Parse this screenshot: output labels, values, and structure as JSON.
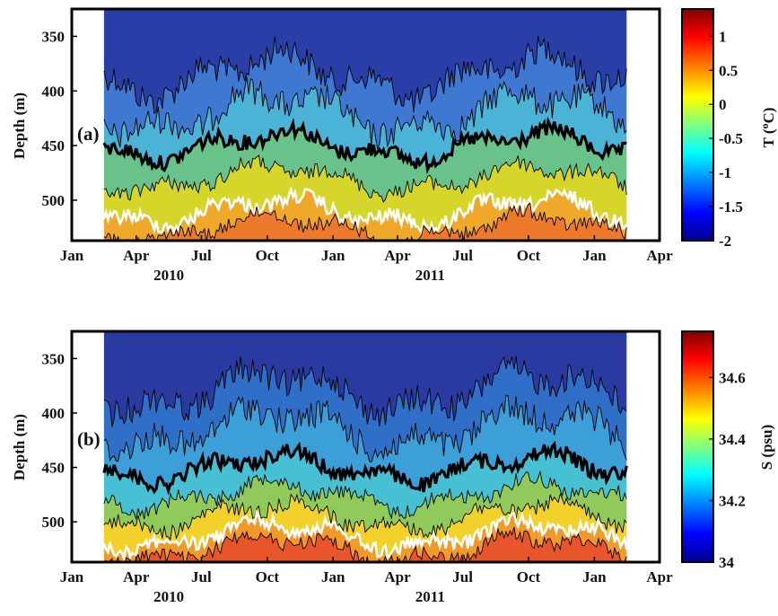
{
  "chart_data": [
    {
      "type": "heatmap",
      "panel_label": "(a)",
      "ylabel": "Depth (m)",
      "y_ticks": [
        "350",
        "400",
        "450",
        "500"
      ],
      "y_tick_values": [
        350,
        400,
        450,
        500
      ],
      "ylim": [
        537,
        325
      ],
      "x_ticks": [
        "Jan",
        "Apr",
        "Jul",
        "Oct",
        "Jan",
        "Apr",
        "Jul",
        "Oct",
        "Jan",
        "Apr"
      ],
      "x_tick_values": [
        "2010-01-01",
        "2010-04-01",
        "2010-07-01",
        "2010-10-01",
        "2011-01-01",
        "2011-04-01",
        "2011-07-01",
        "2011-10-01",
        "2012-01-01",
        "2012-04-01"
      ],
      "year_labels": [
        "2010",
        "2011"
      ],
      "data_start": "2010-02-15",
      "data_end": "2012-02-15",
      "colorbar": {
        "label": "T (°C)",
        "label_main": "T (",
        "label_sup": "o",
        "label_unit": "C)",
        "min": -2,
        "max": 1.4,
        "ticks": [
          "1",
          "0.5",
          "0",
          "-0.5",
          "-1",
          "-1.5",
          "-2"
        ],
        "tick_values": [
          1,
          0.5,
          0,
          -0.5,
          -1,
          -1.5,
          -2
        ]
      },
      "isotherm_depths_m": {
        "band_boundaries": [
          385,
          420,
          450,
          480,
          510,
          525
        ],
        "thick_black_contour": 450,
        "white_contour": 510
      }
    },
    {
      "type": "heatmap",
      "panel_label": "(b)",
      "ylabel": "Depth (m)",
      "y_ticks": [
        "350",
        "400",
        "450",
        "500"
      ],
      "y_tick_values": [
        350,
        400,
        450,
        500
      ],
      "ylim": [
        537,
        325
      ],
      "x_ticks": [
        "Jan",
        "Apr",
        "Jul",
        "Oct",
        "Jan",
        "Apr",
        "Jul",
        "Oct",
        "Jan",
        "Apr"
      ],
      "x_tick_values": [
        "2010-01-01",
        "2010-04-01",
        "2010-07-01",
        "2010-10-01",
        "2011-01-01",
        "2011-04-01",
        "2011-07-01",
        "2011-10-01",
        "2012-01-01",
        "2012-04-01"
      ],
      "year_labels": [
        "2010",
        "2011"
      ],
      "data_start": "2010-02-15",
      "data_end": "2012-02-15",
      "colorbar": {
        "label": "S (psu)",
        "min": 34,
        "max": 34.75,
        "ticks": [
          "34.6",
          "34.4",
          "34.2",
          "34"
        ],
        "tick_values": [
          34.6,
          34.4,
          34.2,
          34
        ]
      },
      "isohaline_depths_m": {
        "band_boundaries": [
          380,
          415,
          450,
          475,
          495,
          512,
          525
        ],
        "thick_black_contour": 450,
        "white_contour": 512
      }
    }
  ],
  "colors": {
    "jet_stops": [
      "#00008f",
      "#0000ff",
      "#00ffff",
      "#ffff00",
      "#ff0000",
      "#800000"
    ],
    "band_fills_a": [
      "#2a3ea8",
      "#3f78d0",
      "#4ab3d6",
      "#69c28a",
      "#d6d52a",
      "#f0a82a",
      "#ed7a2a"
    ],
    "band_fills_b": [
      "#2b3aa0",
      "#2f6fc8",
      "#3c9fd8",
      "#46c0d2",
      "#8fca5a",
      "#f1d12a",
      "#f19a2a",
      "#e8552a"
    ]
  }
}
